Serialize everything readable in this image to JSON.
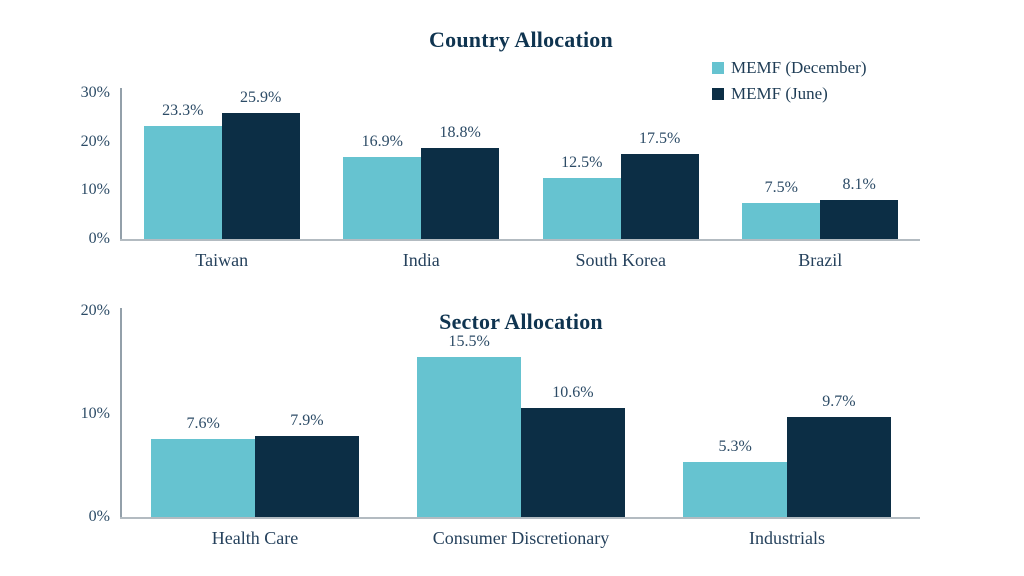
{
  "colors": {
    "series_december": "#66C3D0",
    "series_june": "#0C2E45",
    "title_text": "#0F3450",
    "axis_text": "#2C4B66",
    "category_text": "#25415C",
    "y_axis_line": "#93A0AA",
    "x_axis_line": "#B3BBC1",
    "background": "#FFFFFF"
  },
  "chart_data": [
    {
      "type": "bar",
      "title": "Country Allocation",
      "categories": [
        "Taiwan",
        "India",
        "South Korea",
        "Brazil"
      ],
      "series": [
        {
          "name": "MEMF (December)",
          "color": "#66C3D0",
          "values": [
            23.3,
            16.9,
            12.5,
            7.5
          ],
          "labels": [
            "23.3%",
            "16.9%",
            "12.5%",
            "7.5%"
          ]
        },
        {
          "name": "MEMF (June)",
          "color": "#0C2E45",
          "values": [
            25.9,
            18.8,
            17.5,
            8.1
          ],
          "labels": [
            "25.9%",
            "18.8%",
            "17.5%",
            "8.1%"
          ]
        }
      ],
      "xlabel": "",
      "ylabel": "",
      "ylim": [
        0,
        30
      ],
      "yticks": [
        {
          "value": 0,
          "label": "0%"
        },
        {
          "value": 10,
          "label": "10%"
        },
        {
          "value": 20,
          "label": "20%"
        },
        {
          "value": 30,
          "label": "30%"
        }
      ],
      "grid": false,
      "legend_position": "top-right"
    },
    {
      "type": "bar",
      "title": "Sector Allocation",
      "categories": [
        "Health Care",
        "Consumer Discretionary",
        "Industrials"
      ],
      "series": [
        {
          "name": "MEMF (December)",
          "color": "#66C3D0",
          "values": [
            7.6,
            15.5,
            5.3
          ],
          "labels": [
            "7.6%",
            "15.5%",
            "5.3%"
          ]
        },
        {
          "name": "MEMF (June)",
          "color": "#0C2E45",
          "values": [
            7.9,
            10.6,
            9.7
          ],
          "labels": [
            "7.9%",
            "10.6%",
            "9.7%"
          ]
        }
      ],
      "xlabel": "",
      "ylabel": "",
      "ylim": [
        0,
        20
      ],
      "yticks": [
        {
          "value": 0,
          "label": "0%"
        },
        {
          "value": 10,
          "label": "10%"
        },
        {
          "value": 20,
          "label": "20%"
        }
      ],
      "grid": false,
      "legend_position": "none"
    }
  ]
}
